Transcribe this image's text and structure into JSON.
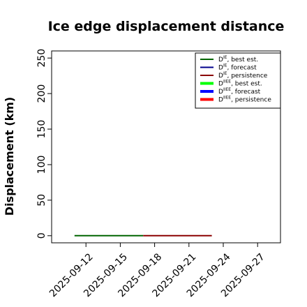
{
  "chart_data": {
    "type": "line",
    "title": "Ice edge displacement distance",
    "xlabel": "",
    "ylabel": "Displacement (km)",
    "ylim": [
      -10,
      260
    ],
    "xlim": [
      "2025-09-09",
      "2025-09-29"
    ],
    "yticks": [
      0,
      50,
      100,
      150,
      200,
      250
    ],
    "xticks": [
      "2025-09-12",
      "2025-09-15",
      "2025-09-18",
      "2025-09-21",
      "2025-09-24",
      "2025-09-27"
    ],
    "highlight_tick": "2025-09-18",
    "highlight_color": "#228b22",
    "grid": false,
    "legend_position": "top-right",
    "legend": [
      {
        "prefix": "D",
        "sup": "IE",
        "suffix": ", best est.",
        "color": "#006400",
        "width": 2
      },
      {
        "prefix": "D",
        "sup": "IE",
        "suffix": ", forecast",
        "color": "#00008b",
        "width": 2
      },
      {
        "prefix": "D",
        "sup": "IE",
        "suffix": ", persistence",
        "color": "#8b0000",
        "width": 2
      },
      {
        "prefix": "D",
        "sup": "IIEE",
        "suffix": ", best est.",
        "color": "#00ff00",
        "width": 4
      },
      {
        "prefix": "D",
        "sup": "IIEE",
        "suffix": ", forecast",
        "color": "#0000ff",
        "width": 4
      },
      {
        "prefix": "D",
        "sup": "IIEE",
        "suffix": ", persistence",
        "color": "#ff0000",
        "width": 4
      }
    ],
    "series": [
      {
        "name": "DIE, best est.",
        "color": "#006400",
        "width": 2,
        "x": [
          "2025-09-11",
          "2025-09-17"
        ],
        "y": [
          0,
          0
        ]
      },
      {
        "name": "DIE, persistence",
        "color": "#8b0000",
        "width": 2,
        "x": [
          "2025-09-17",
          "2025-09-23"
        ],
        "y": [
          0,
          0
        ]
      }
    ]
  }
}
